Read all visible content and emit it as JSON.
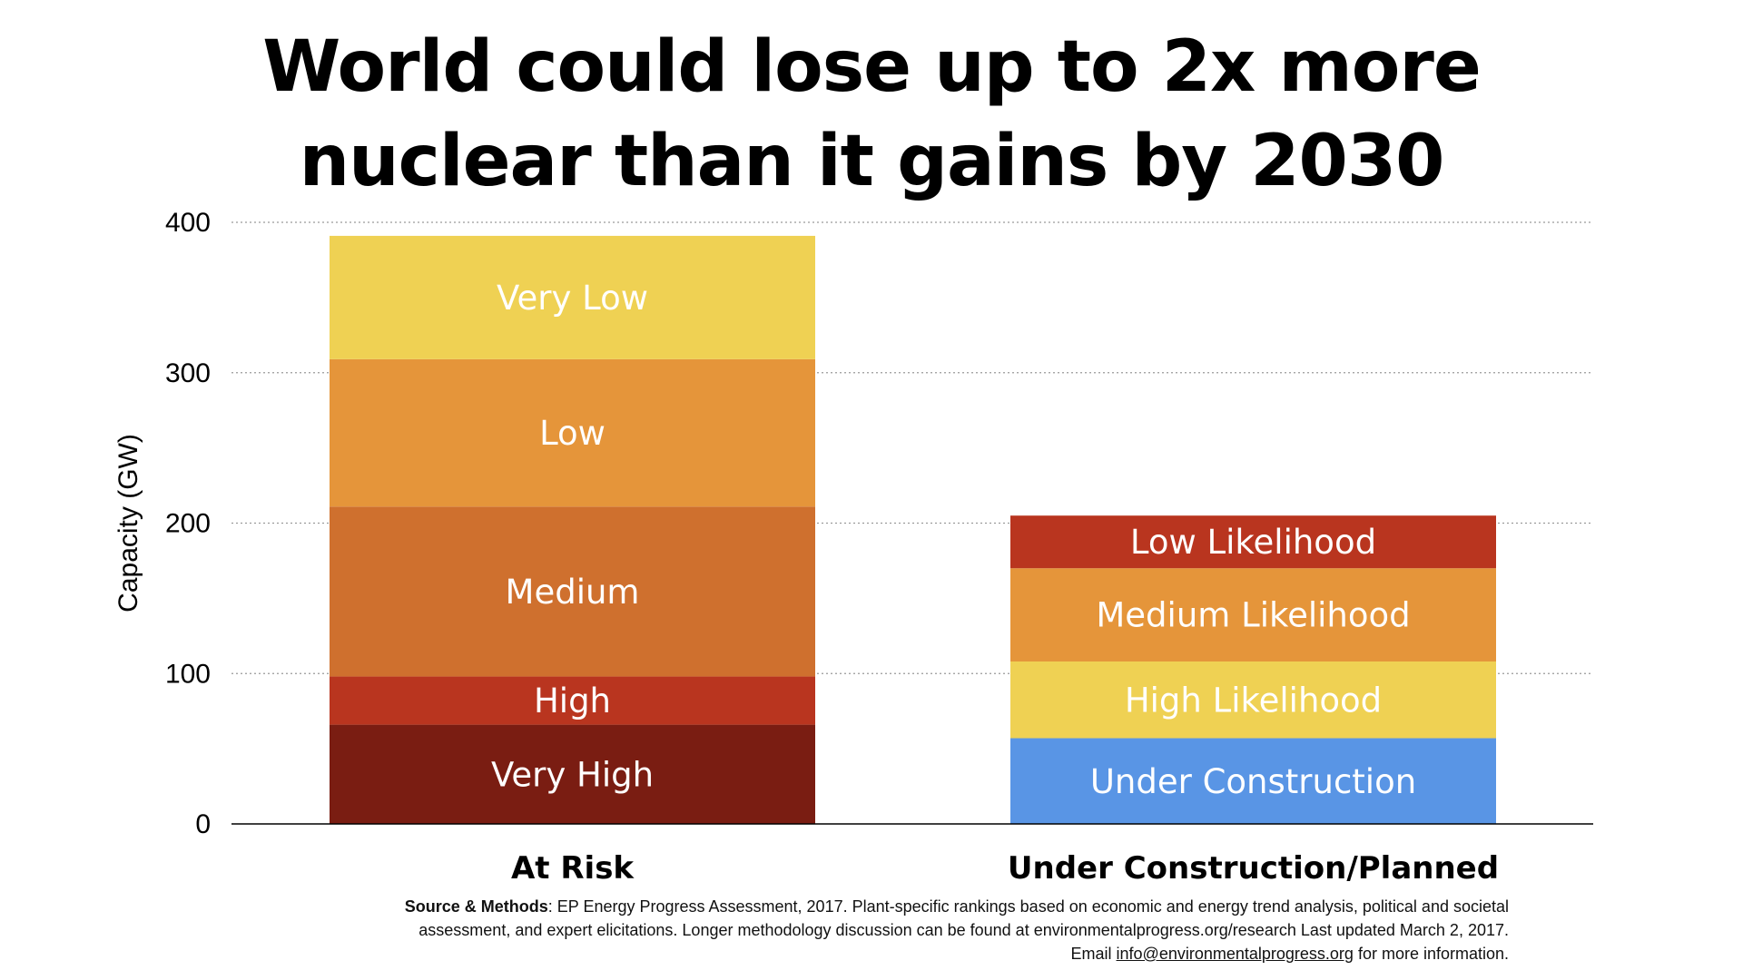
{
  "title": {
    "line1": "World could lose up to 2x more",
    "line2": "nuclear than it gains by 2030"
  },
  "chart_data": {
    "type": "stacked-bar",
    "ylabel": "Capacity (GW)",
    "ylim": [
      0,
      400
    ],
    "yticks": [
      0,
      100,
      200,
      300,
      400
    ],
    "grid": true,
    "categories": [
      "At Risk",
      "Under Construction/Planned"
    ],
    "stacks": [
      {
        "category": "At Risk",
        "segments": [
          {
            "label": "Very High",
            "value": 66,
            "color": "#7a1d12"
          },
          {
            "label": "High",
            "value": 32,
            "color": "#b9351f"
          },
          {
            "label": "Medium",
            "value": 113,
            "color": "#cf702e"
          },
          {
            "label": "Low",
            "value": 98,
            "color": "#e5953a"
          },
          {
            "label": "Very Low",
            "value": 82,
            "color": "#efd153"
          }
        ]
      },
      {
        "category": "Under Construction/Planned",
        "segments": [
          {
            "label": "Under Construction",
            "value": 57,
            "color": "#5995e5"
          },
          {
            "label": "High Likelihood",
            "value": 51,
            "color": "#efd153"
          },
          {
            "label": "Medium Likelihood",
            "value": 62,
            "color": "#e5953a"
          },
          {
            "label": "Low Likelihood",
            "value": 35,
            "color": "#b9351f"
          }
        ]
      }
    ]
  },
  "footnote": {
    "bold": "Source & Methods",
    "text1": ": EP Energy Progress Assessment, 2017. Plant-specific rankings based on economic and energy trend analysis, political and societal assessment, and expert elicitations. Longer methodology discussion can be found at environmentalprogress.org/research Last updated March 2, 2017. Email ",
    "email": "info@environmentalprogress.org",
    "text2": " for more information."
  },
  "colors": {
    "axis": "#000000",
    "grid": "#9a9a9a",
    "segment_label": "#ffffff"
  }
}
